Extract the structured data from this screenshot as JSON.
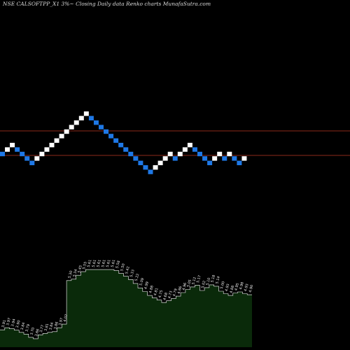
{
  "chart_data": {
    "title": "NSE CALSOFTPP_X1 3%~  Closing Daily data  Renko  charts MunafaSutra.com",
    "colors": {
      "background": "#000000",
      "up_brick": "#ffffff",
      "down_brick": "#1e78e6",
      "resistance_line": "#8b2a1a",
      "volume_fill": "#0a2a0a",
      "volume_line": "#ffffff"
    },
    "renko": {
      "type": "renko",
      "brick_direction": [
        -1,
        1,
        1,
        -1,
        -1,
        -1,
        -1,
        1,
        1,
        1,
        1,
        1,
        1,
        1,
        1,
        1,
        1,
        1,
        -1,
        -1,
        -1,
        -1,
        -1,
        -1,
        -1,
        -1,
        -1,
        -1,
        -1,
        -1,
        -1,
        1,
        1,
        1,
        1,
        -1,
        1,
        1,
        1,
        -1,
        -1,
        -1,
        -1,
        1,
        1,
        -1,
        1,
        -1,
        -1,
        1
      ],
      "horizontal_lines": 2
    },
    "levels": {
      "type": "area",
      "values": [
        3.91,
        3.97,
        3.94,
        3.9,
        3.84,
        3.79,
        3.7,
        3.66,
        3.77,
        3.81,
        3.84,
        3.86,
        3.97,
        4.07,
        5.3,
        5.34,
        5.45,
        5.55,
        5.61,
        5.61,
        5.61,
        5.61,
        5.61,
        5.61,
        5.58,
        5.5,
        5.42,
        5.33,
        5.22,
        5.09,
        4.99,
        4.88,
        4.81,
        4.75,
        4.68,
        4.73,
        4.79,
        4.86,
        4.96,
        5.05,
        5.12,
        5.17,
        5.02,
        5.1,
        5.18,
        5.14,
        5.0,
        4.93,
        4.88,
        4.95,
        4.98,
        4.93,
        4.9
      ],
      "labels": [
        "3.91",
        "3.97",
        "3.94",
        "3.90",
        "3.84",
        "3.79",
        "3.70",
        "3.66",
        "3.77",
        "3.81",
        "3.84",
        "3.86",
        "3.97",
        "4.07",
        "5.30",
        "5.34",
        "5.45",
        "5.55",
        "5.61",
        "5.61",
        "5.61",
        "5.61",
        "5.61",
        "5.61",
        "5.58",
        "5.50",
        "5.42",
        "5.33",
        "5.22",
        "5.09",
        "4.99",
        "4.88",
        "4.81",
        "4.75",
        "4.68",
        "4.73",
        "4.79",
        "4.86",
        "4.96",
        "5.05",
        "5.12",
        "5.17",
        "5.02",
        "5.10",
        "5.18",
        "5.14",
        "5.00",
        "4.93",
        "4.88",
        "4.95",
        "4.98",
        "4.93",
        "4.90"
      ]
    }
  }
}
